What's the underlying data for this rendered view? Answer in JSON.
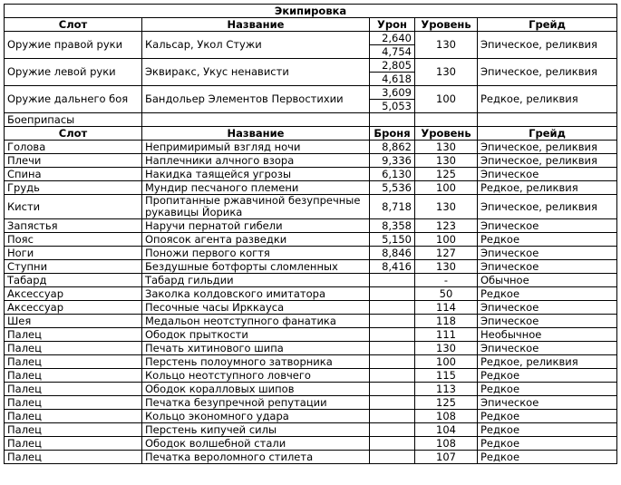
{
  "title": "Экипировка",
  "weapons": {
    "header": [
      "Слот",
      "Название",
      "Урон",
      "Уровень",
      "Грейд"
    ],
    "rows": [
      {
        "slot": "Оружие правой руки",
        "name": "Кальсар, Укол Стужи",
        "damage": [
          "2,640",
          "4,754"
        ],
        "level": "130",
        "grade": "Эпическое, реликвия"
      },
      {
        "slot": "Оружие левой руки",
        "name": "Эквиракс, Укус ненависти",
        "damage": [
          "2,805",
          "4,618"
        ],
        "level": "130",
        "grade": "Эпическое, реликвия"
      },
      {
        "slot": "Оружие дальнего боя",
        "name": "Бандольер Элементов Первостихии",
        "damage": [
          "3,609",
          "5,053"
        ],
        "level": "100",
        "grade": "Редкое, реликвия"
      }
    ]
  },
  "ammo": "Боеприпасы",
  "armor": {
    "header": [
      "Слот",
      "Название",
      "Броня",
      "Уровень",
      "Грейд"
    ],
    "rows": [
      [
        "Голова",
        "Непримиримый взгляд ночи",
        "8,862",
        "130",
        "Эпическое, реликвия"
      ],
      [
        "Плечи",
        "Наплечники алчного взора",
        "9,336",
        "130",
        "Эпическое, реликвия"
      ],
      [
        "Спина",
        "Накидка таящейся угрозы",
        "6,130",
        "125",
        "Эпическое"
      ],
      [
        "Грудь",
        "Мундир песчаного племени",
        "5,536",
        "100",
        "Редкое, реликвия"
      ],
      [
        "Кисти",
        "Пропитанные ржавчиной безупречные рукавицы Йорика",
        "8,718",
        "130",
        "Эпическое, реликвия"
      ],
      [
        "Запястья",
        "Наручи пернатой гибели",
        "8,358",
        "123",
        "Эпическое"
      ],
      [
        "Пояс",
        "Опоясок агента разведки",
        "5,150",
        "100",
        "Редкое"
      ],
      [
        "Ноги",
        "Поножи первого когтя",
        "8,846",
        "127",
        "Эпическое"
      ],
      [
        "Ступни",
        "Бездушные ботфорты сломленных",
        "8,416",
        "130",
        "Эпическое"
      ],
      [
        "Табард",
        "Табард гильдии",
        null,
        "-",
        "Обычное"
      ],
      [
        "Аксессуар",
        "Заколка колдовского имитатора",
        null,
        "50",
        "Редкое"
      ],
      [
        "Аксессуар",
        "Песочные часы Ирккауса",
        null,
        "114",
        "Эпическое"
      ],
      [
        "Шея",
        "Медальон неотступного фанатика",
        null,
        "118",
        "Эпическое"
      ],
      [
        "Палец",
        "Ободок прыткости",
        null,
        "111",
        "Необычное"
      ],
      [
        "Палец",
        "Печать хитинового шипа",
        null,
        "130",
        "Эпическое"
      ],
      [
        "Палец",
        "Перстень полоумного затворника",
        null,
        "100",
        "Редкое, реликвия"
      ],
      [
        "Палец",
        "Кольцо неотступного ловчего",
        null,
        "115",
        "Редкое"
      ],
      [
        "Палец",
        "Ободок коралловых шипов",
        null,
        "113",
        "Редкое"
      ],
      [
        "Палец",
        "Печатка безупречной репутации",
        null,
        "125",
        "Эпическое"
      ],
      [
        "Палец",
        "Кольцо экономного удара",
        null,
        "108",
        "Редкое"
      ],
      [
        "Палец",
        "Перстень кипучей силы",
        null,
        "104",
        "Редкое"
      ],
      [
        "Палец",
        "Ободок волшебной стали",
        null,
        "108",
        "Редкое"
      ],
      [
        "Палец",
        "Печатка вероломного стилета",
        null,
        "107",
        "Редкое"
      ]
    ]
  }
}
